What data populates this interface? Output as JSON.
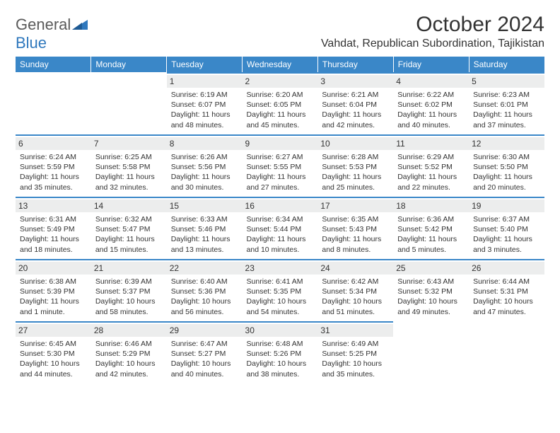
{
  "brand": {
    "name_part1": "General",
    "name_part2": "Blue",
    "text_color": "#5a5a5a",
    "accent_color": "#2f78bd"
  },
  "header": {
    "title": "October 2024",
    "location": "Vahdat, Republican Subordination, Tajikistan"
  },
  "style": {
    "header_bg": "#3a87c8",
    "header_text": "#ffffff",
    "cell_border_top": "#3a87c8",
    "daynum_bg": "#eceded",
    "body_text": "#333333",
    "header_fontsize": 12,
    "daynum_fontsize": 12,
    "info_fontsize": 10.5,
    "title_fontsize": 30,
    "location_fontsize": 16
  },
  "weekdays": [
    "Sunday",
    "Monday",
    "Tuesday",
    "Wednesday",
    "Thursday",
    "Friday",
    "Saturday"
  ],
  "weeks": [
    [
      null,
      null,
      {
        "day": "1",
        "sunrise": "Sunrise: 6:19 AM",
        "sunset": "Sunset: 6:07 PM",
        "daylight": "Daylight: 11 hours and 48 minutes."
      },
      {
        "day": "2",
        "sunrise": "Sunrise: 6:20 AM",
        "sunset": "Sunset: 6:05 PM",
        "daylight": "Daylight: 11 hours and 45 minutes."
      },
      {
        "day": "3",
        "sunrise": "Sunrise: 6:21 AM",
        "sunset": "Sunset: 6:04 PM",
        "daylight": "Daylight: 11 hours and 42 minutes."
      },
      {
        "day": "4",
        "sunrise": "Sunrise: 6:22 AM",
        "sunset": "Sunset: 6:02 PM",
        "daylight": "Daylight: 11 hours and 40 minutes."
      },
      {
        "day": "5",
        "sunrise": "Sunrise: 6:23 AM",
        "sunset": "Sunset: 6:01 PM",
        "daylight": "Daylight: 11 hours and 37 minutes."
      }
    ],
    [
      {
        "day": "6",
        "sunrise": "Sunrise: 6:24 AM",
        "sunset": "Sunset: 5:59 PM",
        "daylight": "Daylight: 11 hours and 35 minutes."
      },
      {
        "day": "7",
        "sunrise": "Sunrise: 6:25 AM",
        "sunset": "Sunset: 5:58 PM",
        "daylight": "Daylight: 11 hours and 32 minutes."
      },
      {
        "day": "8",
        "sunrise": "Sunrise: 6:26 AM",
        "sunset": "Sunset: 5:56 PM",
        "daylight": "Daylight: 11 hours and 30 minutes."
      },
      {
        "day": "9",
        "sunrise": "Sunrise: 6:27 AM",
        "sunset": "Sunset: 5:55 PM",
        "daylight": "Daylight: 11 hours and 27 minutes."
      },
      {
        "day": "10",
        "sunrise": "Sunrise: 6:28 AM",
        "sunset": "Sunset: 5:53 PM",
        "daylight": "Daylight: 11 hours and 25 minutes."
      },
      {
        "day": "11",
        "sunrise": "Sunrise: 6:29 AM",
        "sunset": "Sunset: 5:52 PM",
        "daylight": "Daylight: 11 hours and 22 minutes."
      },
      {
        "day": "12",
        "sunrise": "Sunrise: 6:30 AM",
        "sunset": "Sunset: 5:50 PM",
        "daylight": "Daylight: 11 hours and 20 minutes."
      }
    ],
    [
      {
        "day": "13",
        "sunrise": "Sunrise: 6:31 AM",
        "sunset": "Sunset: 5:49 PM",
        "daylight": "Daylight: 11 hours and 18 minutes."
      },
      {
        "day": "14",
        "sunrise": "Sunrise: 6:32 AM",
        "sunset": "Sunset: 5:47 PM",
        "daylight": "Daylight: 11 hours and 15 minutes."
      },
      {
        "day": "15",
        "sunrise": "Sunrise: 6:33 AM",
        "sunset": "Sunset: 5:46 PM",
        "daylight": "Daylight: 11 hours and 13 minutes."
      },
      {
        "day": "16",
        "sunrise": "Sunrise: 6:34 AM",
        "sunset": "Sunset: 5:44 PM",
        "daylight": "Daylight: 11 hours and 10 minutes."
      },
      {
        "day": "17",
        "sunrise": "Sunrise: 6:35 AM",
        "sunset": "Sunset: 5:43 PM",
        "daylight": "Daylight: 11 hours and 8 minutes."
      },
      {
        "day": "18",
        "sunrise": "Sunrise: 6:36 AM",
        "sunset": "Sunset: 5:42 PM",
        "daylight": "Daylight: 11 hours and 5 minutes."
      },
      {
        "day": "19",
        "sunrise": "Sunrise: 6:37 AM",
        "sunset": "Sunset: 5:40 PM",
        "daylight": "Daylight: 11 hours and 3 minutes."
      }
    ],
    [
      {
        "day": "20",
        "sunrise": "Sunrise: 6:38 AM",
        "sunset": "Sunset: 5:39 PM",
        "daylight": "Daylight: 11 hours and 1 minute."
      },
      {
        "day": "21",
        "sunrise": "Sunrise: 6:39 AM",
        "sunset": "Sunset: 5:37 PM",
        "daylight": "Daylight: 10 hours and 58 minutes."
      },
      {
        "day": "22",
        "sunrise": "Sunrise: 6:40 AM",
        "sunset": "Sunset: 5:36 PM",
        "daylight": "Daylight: 10 hours and 56 minutes."
      },
      {
        "day": "23",
        "sunrise": "Sunrise: 6:41 AM",
        "sunset": "Sunset: 5:35 PM",
        "daylight": "Daylight: 10 hours and 54 minutes."
      },
      {
        "day": "24",
        "sunrise": "Sunrise: 6:42 AM",
        "sunset": "Sunset: 5:34 PM",
        "daylight": "Daylight: 10 hours and 51 minutes."
      },
      {
        "day": "25",
        "sunrise": "Sunrise: 6:43 AM",
        "sunset": "Sunset: 5:32 PM",
        "daylight": "Daylight: 10 hours and 49 minutes."
      },
      {
        "day": "26",
        "sunrise": "Sunrise: 6:44 AM",
        "sunset": "Sunset: 5:31 PM",
        "daylight": "Daylight: 10 hours and 47 minutes."
      }
    ],
    [
      {
        "day": "27",
        "sunrise": "Sunrise: 6:45 AM",
        "sunset": "Sunset: 5:30 PM",
        "daylight": "Daylight: 10 hours and 44 minutes."
      },
      {
        "day": "28",
        "sunrise": "Sunrise: 6:46 AM",
        "sunset": "Sunset: 5:29 PM",
        "daylight": "Daylight: 10 hours and 42 minutes."
      },
      {
        "day": "29",
        "sunrise": "Sunrise: 6:47 AM",
        "sunset": "Sunset: 5:27 PM",
        "daylight": "Daylight: 10 hours and 40 minutes."
      },
      {
        "day": "30",
        "sunrise": "Sunrise: 6:48 AM",
        "sunset": "Sunset: 5:26 PM",
        "daylight": "Daylight: 10 hours and 38 minutes."
      },
      {
        "day": "31",
        "sunrise": "Sunrise: 6:49 AM",
        "sunset": "Sunset: 5:25 PM",
        "daylight": "Daylight: 10 hours and 35 minutes."
      },
      null,
      null
    ]
  ]
}
